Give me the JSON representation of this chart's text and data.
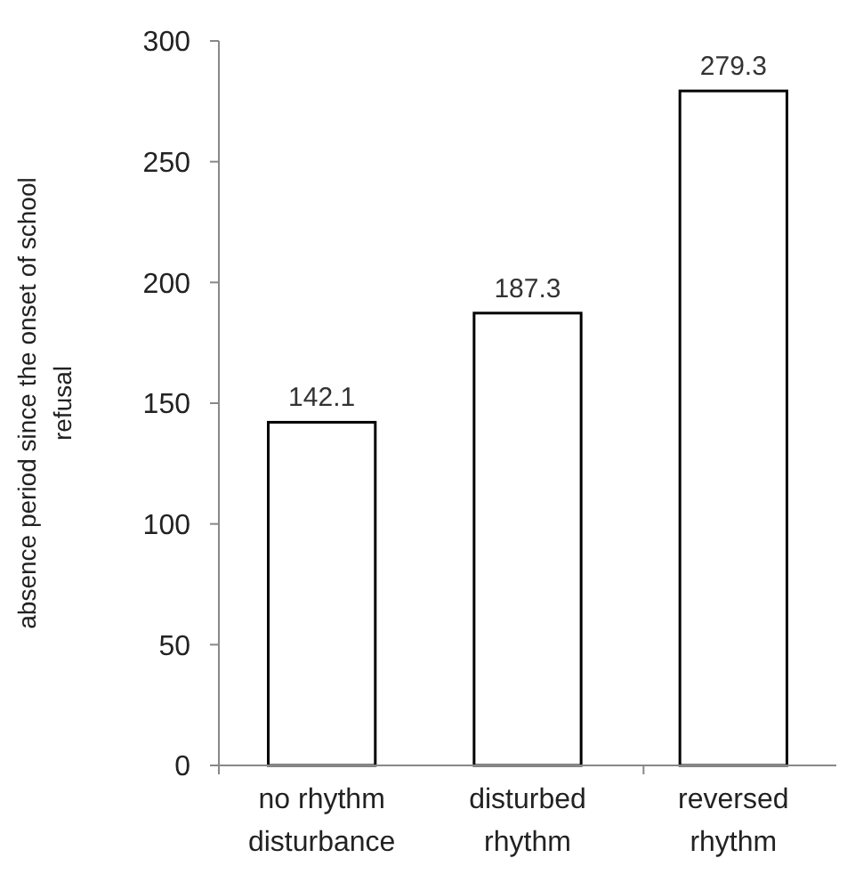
{
  "chart_data": {
    "type": "bar",
    "ylabel": "absence period since the onset of school refusal",
    "categories": [
      "no rhythm disturbance",
      "disturbed rhythm",
      "reversed rhythm"
    ],
    "values": [
      142.1,
      187.3,
      279.3
    ],
    "color": "#ffffff",
    "ylim": [
      0,
      300
    ],
    "yticks": [
      0,
      50,
      100,
      150,
      200,
      250,
      300
    ],
    "data_labels": true
  }
}
